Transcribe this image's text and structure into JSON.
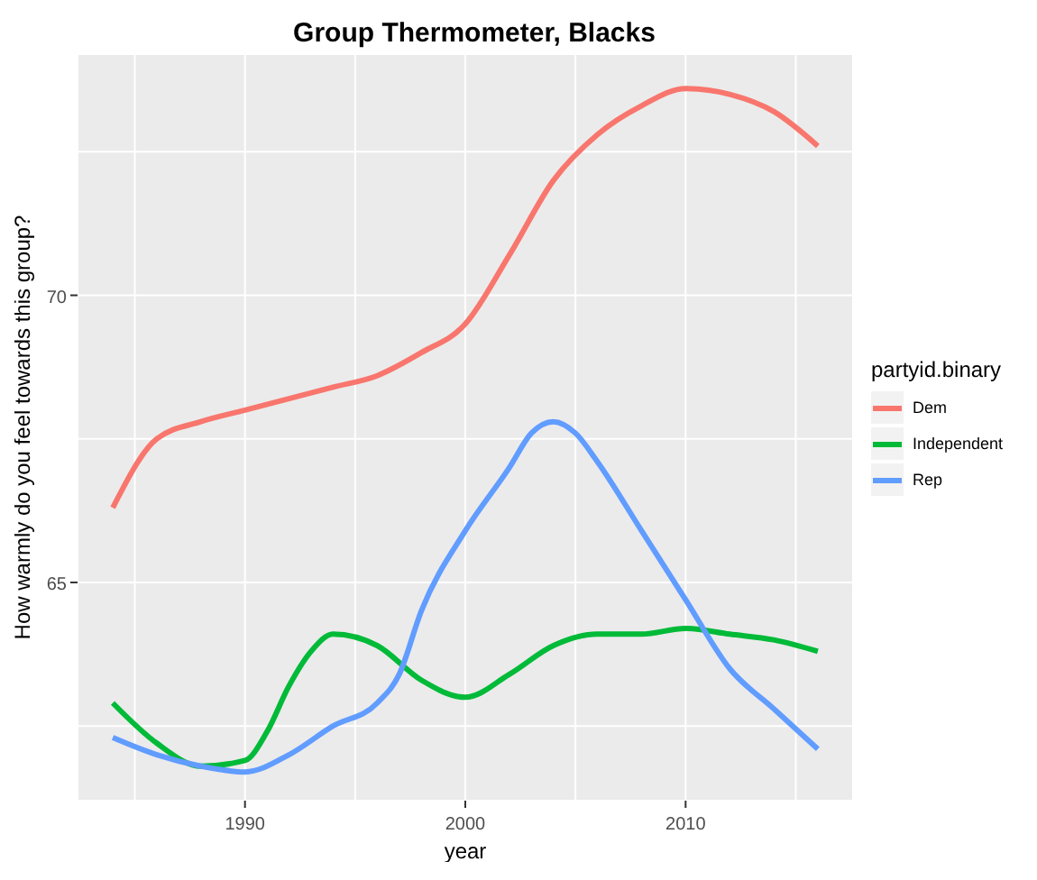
{
  "chart_data": {
    "type": "line",
    "title": "Group Thermometer, Blacks",
    "xlabel": "year",
    "ylabel": "How warmly do you feel towards this group?",
    "legend_title": "partyid.binary",
    "legend": "right",
    "grid": true,
    "marker": "none",
    "line_style": "solid",
    "xlim": [
      1982.4,
      2017.6
    ],
    "xticks": [
      {
        "value": 1985,
        "label": null
      },
      1990,
      {
        "value": 1995,
        "label": null
      },
      2000,
      {
        "value": 2005,
        "label": null
      },
      2010,
      {
        "value": 2015,
        "label": null
      }
    ],
    "ylim": [
      61.2,
      74.2
    ],
    "yticks": [
      {
        "value": 62.5,
        "label": null
      },
      65,
      {
        "value": 67.5,
        "label": null
      },
      70,
      {
        "value": 72.5,
        "label": null
      }
    ],
    "series": [
      {
        "name": "Dem",
        "color": "#f8766d",
        "x": [
          1984,
          1986,
          1988,
          1990,
          1992,
          1994,
          1996,
          1998,
          2000,
          2002,
          2004,
          2006,
          2008,
          2010,
          2012,
          2014,
          2016
        ],
        "values": [
          66.3,
          67.5,
          67.8,
          68.0,
          68.2,
          68.4,
          68.6,
          69.0,
          69.5,
          70.7,
          72.0,
          72.8,
          73.3,
          73.6,
          73.5,
          73.2,
          72.6
        ]
      },
      {
        "name": "Independent",
        "color": "#00ba38",
        "x": [
          1984,
          1986,
          1988,
          1990,
          1991,
          1992,
          1993,
          1994,
          1996,
          1998,
          2000,
          2002,
          2004,
          2006,
          2008,
          2010,
          2012,
          2014,
          2016
        ],
        "values": [
          62.9,
          62.2,
          61.8,
          61.9,
          62.4,
          63.2,
          63.8,
          64.1,
          63.9,
          63.3,
          63.0,
          63.4,
          63.9,
          64.1,
          64.1,
          64.2,
          64.1,
          64.0,
          63.8
        ]
      },
      {
        "name": "Rep",
        "color": "#619cff",
        "x": [
          1984,
          1986,
          1988,
          1990,
          1992,
          1994,
          1996,
          1997,
          1998,
          2000,
          2002,
          2003,
          2004,
          2005,
          2006,
          2008,
          2010,
          2012,
          2014,
          2016
        ],
        "values": [
          62.3,
          62.0,
          61.8,
          61.7,
          62.0,
          62.5,
          62.9,
          63.4,
          64.5,
          65.9,
          67.0,
          67.6,
          67.8,
          67.6,
          67.1,
          65.9,
          64.7,
          63.5,
          62.8,
          62.1
        ]
      }
    ]
  }
}
